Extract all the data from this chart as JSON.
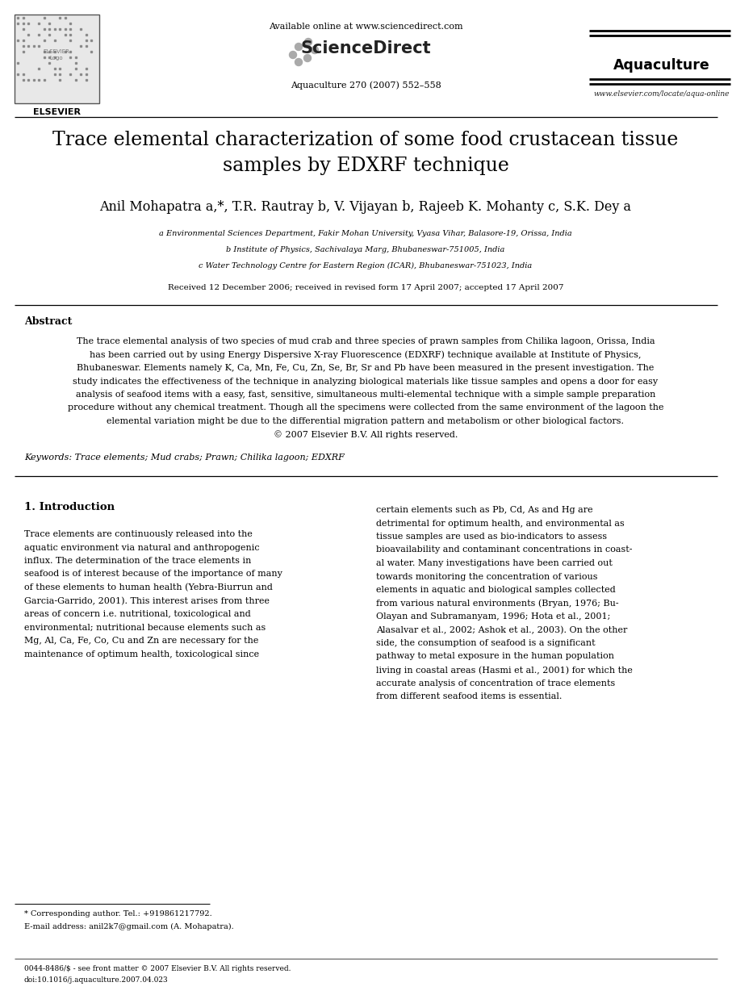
{
  "bg_color": "#ffffff",
  "header": {
    "available_online": "Available online at www.sciencedirect.com",
    "sciencedirect": "ScienceDirect",
    "journal_name": "Aquaculture",
    "journal_info": "Aquaculture 270 (2007) 552–558",
    "journal_url": "www.elsevier.com/locate/aqua-online"
  },
  "title": "Trace elemental characterization of some food crustacean tissue\nsamples by EDXRF technique",
  "authors": "Anil Mohapatra a,*, T.R. Rautray b, V. Vijayan b, Rajeeb K. Mohanty c, S.K. Dey a",
  "affiliations": [
    "a Environmental Sciences Department, Fakir Mohan University, Vyasa Vihar, Balasore-19, Orissa, India",
    "b Institute of Physics, Sachivalaya Marg, Bhubaneswar-751005, India",
    "c Water Technology Centre for Eastern Region (ICAR), Bhubaneswar-751023, India"
  ],
  "received": "Received 12 December 2006; received in revised form 17 April 2007; accepted 17 April 2007",
  "abstract_title": "Abstract",
  "abstract_text": "The trace elemental analysis of two species of mud crab and three species of prawn samples from Chilika lagoon, Orissa, India\nhas been carried out by using Energy Dispersive X-ray Fluorescence (EDXRF) technique available at Institute of Physics,\nBhubaneswar. Elements namely K, Ca, Mn, Fe, Cu, Zn, Se, Br, Sr and Pb have been measured in the present investigation. The\nstudy indicates the effectiveness of the technique in analyzing biological materials like tissue samples and opens a door for easy\nanalysis of seafood items with a easy, fast, sensitive, simultaneous multi-elemental technique with a simple sample preparation\nprocedure without any chemical treatment. Though all the specimens were collected from the same environment of the lagoon the\nelemental variation might be due to the differential migration pattern and metabolism or other biological factors.\n© 2007 Elsevier B.V. All rights reserved.",
  "keywords": "Keywords: Trace elements; Mud crabs; Prawn; Chilika lagoon; EDXRF",
  "section1_title": "1. Introduction",
  "section1_col1_lines": [
    "Trace elements are continuously released into the",
    "aquatic environment via natural and anthropogenic",
    "influx. The determination of the trace elements in",
    "seafood is of interest because of the importance of many",
    "of these elements to human health (Yebra-Biurrun and",
    "Garcia-Garrido, 2001). This interest arises from three",
    "areas of concern i.e. nutritional, toxicological and",
    "environmental; nutritional because elements such as",
    "Mg, Al, Ca, Fe, Co, Cu and Zn are necessary for the",
    "maintenance of optimum health, toxicological since"
  ],
  "section1_col2_lines": [
    "certain elements such as Pb, Cd, As and Hg are",
    "detrimental for optimum health, and environmental as",
    "tissue samples are used as bio-indicators to assess",
    "bioavailability and contaminant concentrations in coast-",
    "al water. Many investigations have been carried out",
    "towards monitoring the concentration of various",
    "elements in aquatic and biological samples collected",
    "from various natural environments (Bryan, 1976; Bu-",
    "Olayan and Subramanyam, 1996; Hota et al., 2001;",
    "Alasalvar et al., 2002; Ashok et al., 2003). On the other",
    "side, the consumption of seafood is a significant",
    "pathway to metal exposure in the human population",
    "living in coastal areas (Hasmi et al., 2001) for which the",
    "accurate analysis of concentration of trace elements",
    "from different seafood items is essential."
  ],
  "footnote_star": "* Corresponding author. Tel.: +919861217792.",
  "footnote_email": "E-mail address: anil2k7@gmail.com (A. Mohapatra).",
  "footer_line1": "0044-8486/$ - see front matter © 2007 Elsevier B.V. All rights reserved.",
  "footer_line2": "doi:10.1016/j.aquaculture.2007.04.023"
}
